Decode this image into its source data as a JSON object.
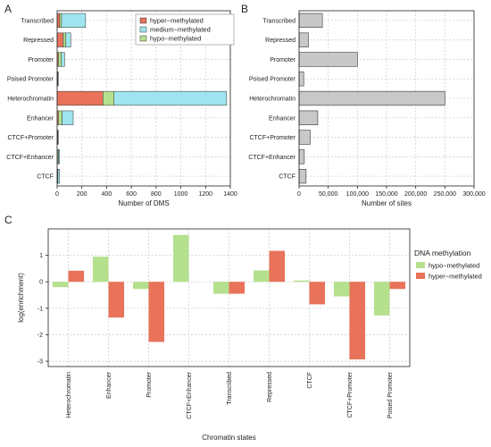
{
  "chart_data": [
    {
      "panel": "A",
      "type": "bar",
      "orientation": "horizontal",
      "stacked": true,
      "categories": [
        "Transcribed",
        "Repressed",
        "Promoter",
        "Poised Promoter",
        "Heterochromatin",
        "Enhancer",
        "CTCF+Promoter",
        "CTCF+Enhancer",
        "CTCF"
      ],
      "series": [
        {
          "name": "hyper−methylated",
          "color": "#e8735a",
          "values": [
            20,
            50,
            10,
            2,
            370,
            10,
            3,
            3,
            3
          ]
        },
        {
          "name": "hypo−methylated",
          "color": "#b5e08e",
          "values": [
            15,
            20,
            25,
            3,
            90,
            30,
            2,
            8,
            3
          ]
        },
        {
          "name": "medium−methylated",
          "color": "#9fe4ee",
          "values": [
            195,
            40,
            25,
            5,
            910,
            90,
            5,
            9,
            14
          ]
        }
      ],
      "legend_order": [
        "hyper−methylated",
        "medium−methylated",
        "hypo−methylated"
      ],
      "xlim": [
        0,
        1400
      ],
      "xticks": [
        "0",
        "200",
        "400",
        "600",
        "800",
        "1000",
        "1200",
        "1400"
      ],
      "xlabel": "Number of DMS",
      "grid": true,
      "legend": "top-right"
    },
    {
      "panel": "B",
      "type": "bar",
      "orientation": "horizontal",
      "categories": [
        "Transcribed",
        "Repressed",
        "Promoter",
        "Poised Promoter",
        "Heterochromatin",
        "Enhancer",
        "CTCF+Promoter",
        "CTCF+Enhancer",
        "CTCF"
      ],
      "values": [
        40000,
        16000,
        100000,
        8000,
        250000,
        32000,
        19000,
        9000,
        12000
      ],
      "color": "#c8c8c8",
      "xlim": [
        0,
        300000
      ],
      "xticks": [
        "0",
        "50,000",
        "100,000",
        "150,000",
        "200,000",
        "250,000",
        "300,000"
      ],
      "xlabel": "Number of sites",
      "grid": true
    },
    {
      "panel": "C",
      "type": "bar",
      "categories": [
        "Heterochromatin",
        "Enhancer",
        "Promoter",
        "CTCF+Enhancer",
        "Transcribed",
        "Repressed",
        "CTCF",
        "CTCF+Promoter",
        "Poised Promoter"
      ],
      "series": [
        {
          "name": "hypo−methylated",
          "color": "#b5e08e",
          "values": [
            -0.2,
            0.95,
            -0.27,
            1.77,
            -0.45,
            0.43,
            0.05,
            -0.55,
            -1.27
          ]
        },
        {
          "name": "hyper−methylated",
          "color": "#e8735a",
          "values": [
            0.42,
            -1.35,
            -2.27,
            null,
            -0.45,
            1.17,
            -0.85,
            -2.93,
            -0.27
          ]
        }
      ],
      "ylim": [
        -3.2,
        2.0
      ],
      "yticks": [
        "-3",
        "-2",
        "-1",
        "0",
        "1"
      ],
      "ylabel": "log(enrichment)",
      "xlabel": "Chromatin states",
      "legend_title": "DNA methylation",
      "legend": "right",
      "grid": true
    }
  ],
  "panels": {
    "a": "A",
    "b": "B",
    "c": "C"
  }
}
